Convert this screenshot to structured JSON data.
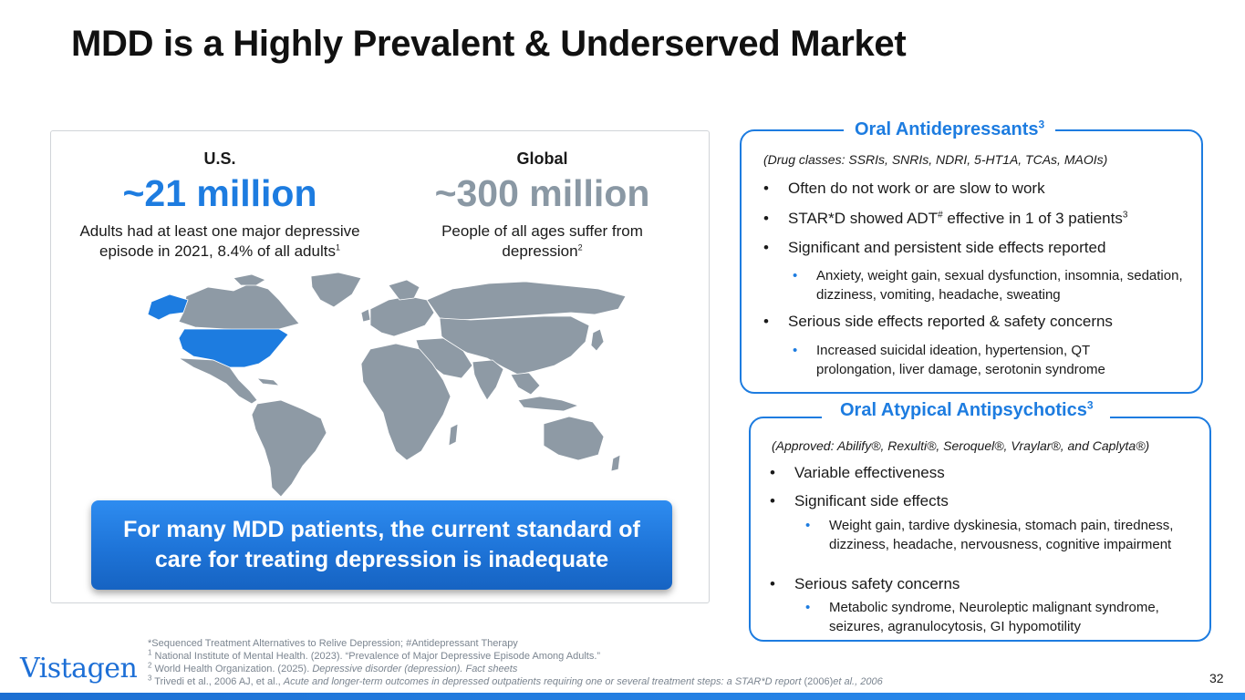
{
  "title": "MDD is a Highly Prevalent & Underserved Market",
  "colors": {
    "accent": "#1d7ce0",
    "gray": "#8a98a4",
    "map_gray": "#8e9aa5",
    "map_highlight": "#1d7ce0"
  },
  "us": {
    "label": "U.S.",
    "value": "~21 million",
    "desc": "Adults had at least one major depressive episode in 2021, 8.4% of all adults",
    "footnote": "1"
  },
  "global": {
    "label": "Global",
    "value": "~300 million",
    "desc": "People of all ages suffer from depression",
    "footnote": "2"
  },
  "map": {
    "icon": "world-map-icon",
    "highlighted_region": "United States"
  },
  "callout": "For many MDD patients, the current standard of care for treating depression is inadequate",
  "oral_antidepressants": {
    "title": "Oral Antidepressants",
    "title_sup": "3",
    "subtitle": "(Drug classes: SSRIs, SNRIs, NDRI, 5-HT1A, TCAs, MAOIs)",
    "bullet1": "Often do not work or are slow to work",
    "bullet2_a": "STAR*D showed ADT",
    "bullet2_sup1": "#",
    "bullet2_b": " effective in 1 of 3 patients",
    "bullet2_sup2": "3",
    "bullet3": "Significant and persistent side effects reported",
    "sub3": "Anxiety, weight gain, sexual dysfunction, insomnia, sedation, dizziness, vomiting, headache, sweating",
    "bullet4": "Serious side effects reported & safety concerns",
    "sub4": "Increased suicidal ideation, hypertension, QT prolongation, liver damage, serotonin syndrome"
  },
  "oral_atypical": {
    "title": "Oral Atypical Antipsychotics",
    "title_sup": "3",
    "subtitle": "(Approved: Abilify®, Rexulti®, Seroquel®, Vraylar®, and Caplyta®)",
    "bullet1": "Variable effectiveness",
    "bullet2": "Significant side effects",
    "sub2": "Weight gain, tardive dyskinesia, stomach pain, tiredness, dizziness, headache, nervousness, cognitive impairment",
    "bullet3": "Serious safety concerns",
    "sub3": "Metabolic syndrome, Neuroleptic malignant syndrome, seizures, agranulocytosis, GI hypomotility"
  },
  "footnotes": {
    "line0": "*Sequenced Treatment Alternatives to Relive Depression; #Antidepressant Therapy",
    "line1_sup": "1",
    "line1": " National Institute of Mental Health. (2023). “Prevalence of Major Depressive Episode Among Adults.”",
    "line2_sup": "2",
    "line2_a": " World Health Organization. (2025). ",
    "line2_b": "Depressive disorder (depression). Fact sheets",
    "line3_sup": "3",
    "line3_a": " Trivedi et al., 2006 AJ, et al., ",
    "line3_b": "Acute and longer-term outcomes in depressed outpatients requiring one or several treatment steps: a STAR*D report",
    "line3_c": " (2006)",
    "line3_d": "et al., 2006"
  },
  "logo": "Vistagen",
  "page_number": "32"
}
